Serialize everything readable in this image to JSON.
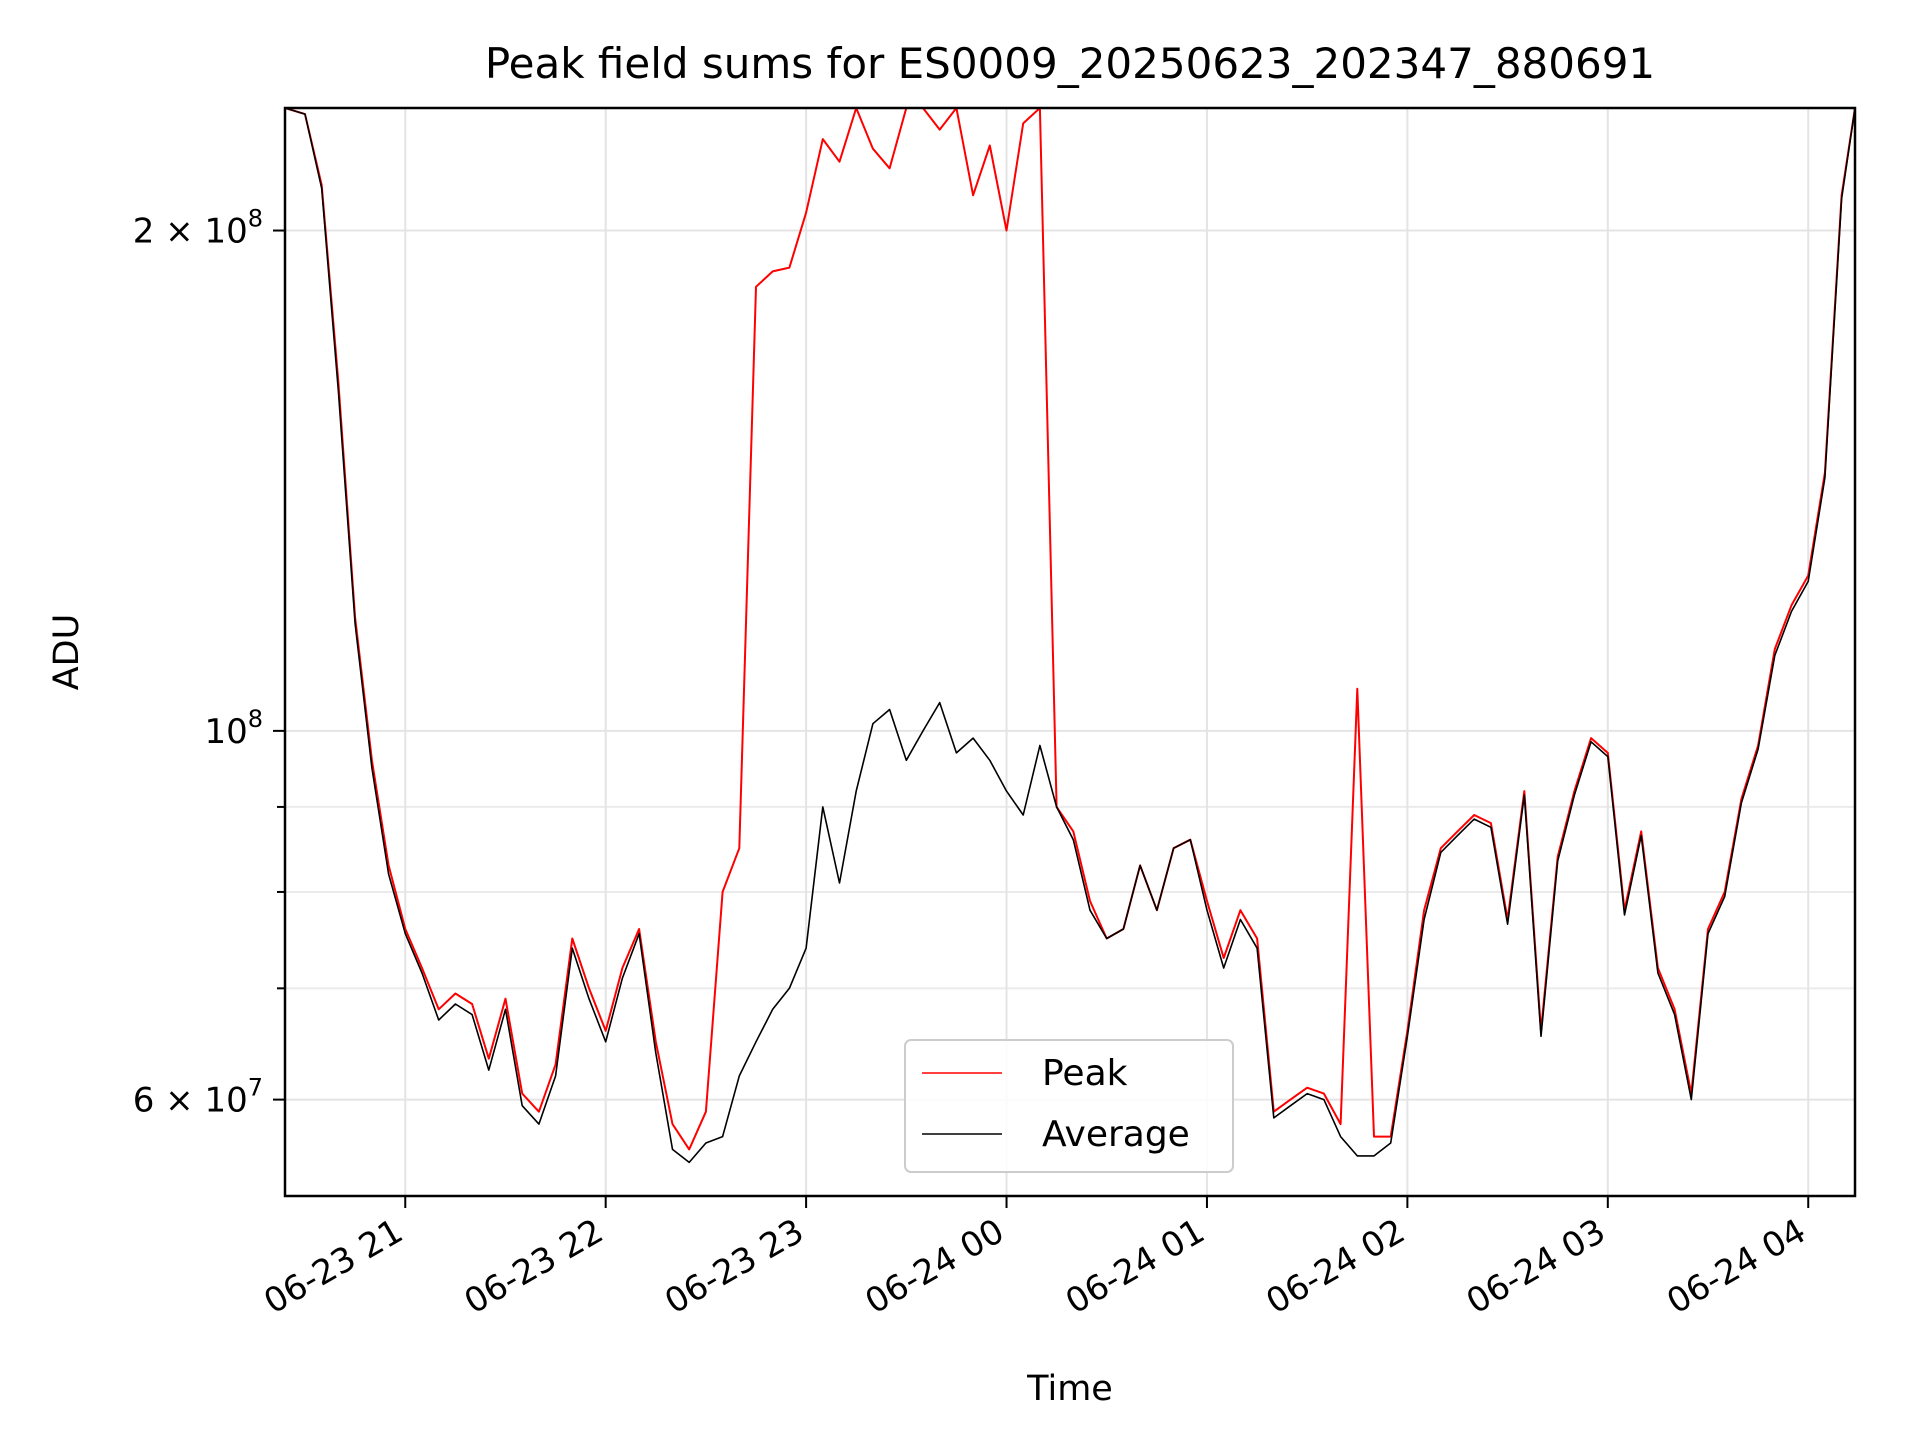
{
  "chart_data": {
    "type": "line",
    "title": "Peak field sums for ES0009_20250623_202347_880691",
    "xlabel": "Time",
    "ylabel": "ADU",
    "yscale": "log",
    "grid": true,
    "legend_position": "lower center",
    "ylim": [
      52500000,
      237000000
    ],
    "xlim": [
      "2025-06-23 20:24",
      "2025-06-24 04:14"
    ],
    "x_ticks": [
      "06-23 21",
      "06-23 22",
      "06-23 23",
      "06-24 00",
      "06-24 01",
      "06-24 02",
      "06-24 03",
      "06-24 04"
    ],
    "y_ticks": [
      {
        "value": 60000000,
        "mantissa": "6",
        "exponent": "7"
      },
      {
        "value": 100000000,
        "mantissa": "",
        "exponent": "8"
      },
      {
        "value": 200000000,
        "mantissa": "2",
        "exponent": "8"
      }
    ],
    "y_minor_ticks": [
      70000000,
      80000000,
      90000000
    ],
    "x": [
      "2025-06-23 20:24",
      "2025-06-23 20:30",
      "2025-06-23 20:35",
      "2025-06-23 20:40",
      "2025-06-23 20:45",
      "2025-06-23 20:50",
      "2025-06-23 20:55",
      "2025-06-23 21:00",
      "2025-06-23 21:05",
      "2025-06-23 21:10",
      "2025-06-23 21:15",
      "2025-06-23 21:20",
      "2025-06-23 21:25",
      "2025-06-23 21:30",
      "2025-06-23 21:35",
      "2025-06-23 21:40",
      "2025-06-23 21:45",
      "2025-06-23 21:50",
      "2025-06-23 21:55",
      "2025-06-23 22:00",
      "2025-06-23 22:05",
      "2025-06-23 22:10",
      "2025-06-23 22:15",
      "2025-06-23 22:20",
      "2025-06-23 22:25",
      "2025-06-23 22:30",
      "2025-06-23 22:35",
      "2025-06-23 22:40",
      "2025-06-23 22:45",
      "2025-06-23 22:50",
      "2025-06-23 22:55",
      "2025-06-23 23:00",
      "2025-06-23 23:05",
      "2025-06-23 23:10",
      "2025-06-23 23:15",
      "2025-06-23 23:20",
      "2025-06-23 23:25",
      "2025-06-23 23:30",
      "2025-06-23 23:35",
      "2025-06-23 23:40",
      "2025-06-23 23:45",
      "2025-06-23 23:50",
      "2025-06-23 23:55",
      "2025-06-24 00:00",
      "2025-06-24 00:05",
      "2025-06-24 00:10",
      "2025-06-24 00:15",
      "2025-06-24 00:20",
      "2025-06-24 00:25",
      "2025-06-24 00:30",
      "2025-06-24 00:35",
      "2025-06-24 00:40",
      "2025-06-24 00:45",
      "2025-06-24 00:50",
      "2025-06-24 00:55",
      "2025-06-24 01:00",
      "2025-06-24 01:05",
      "2025-06-24 01:10",
      "2025-06-24 01:15",
      "2025-06-24 01:20",
      "2025-06-24 01:25",
      "2025-06-24 01:30",
      "2025-06-24 01:35",
      "2025-06-24 01:40",
      "2025-06-24 01:45",
      "2025-06-24 01:50",
      "2025-06-24 01:55",
      "2025-06-24 02:00",
      "2025-06-24 02:05",
      "2025-06-24 02:10",
      "2025-06-24 02:15",
      "2025-06-24 02:20",
      "2025-06-24 02:25",
      "2025-06-24 02:30",
      "2025-06-24 02:35",
      "2025-06-24 02:40",
      "2025-06-24 02:45",
      "2025-06-24 02:50",
      "2025-06-24 02:55",
      "2025-06-24 03:00",
      "2025-06-24 03:05",
      "2025-06-24 03:10",
      "2025-06-24 03:15",
      "2025-06-24 03:20",
      "2025-06-24 03:25",
      "2025-06-24 03:30",
      "2025-06-24 03:35",
      "2025-06-24 03:40",
      "2025-06-24 03:45",
      "2025-06-24 03:50",
      "2025-06-24 03:55",
      "2025-06-24 04:00",
      "2025-06-24 04:05",
      "2025-06-24 04:10",
      "2025-06-24 04:14"
    ],
    "series": [
      {
        "name": "Peak",
        "color": "#ff0000",
        "values": [
          237000000,
          235000000,
          213000000,
          162000000,
          117000000,
          96000000,
          83000000,
          76000000,
          72000000,
          68000000,
          69500000,
          68500000,
          63500000,
          69000000,
          60500000,
          59000000,
          63000000,
          75000000,
          70000000,
          66000000,
          72000000,
          76000000,
          65000000,
          58000000,
          56000000,
          59000000,
          80000000,
          85000000,
          185000000,
          189000000,
          190000000,
          205000000,
          227000000,
          220000000,
          237000000,
          224000000,
          218000000,
          237000000,
          237000000,
          230000000,
          237000000,
          210000000,
          225000000,
          200000000,
          232000000,
          237000000,
          90000000,
          87000000,
          79000000,
          75000000,
          76000000,
          83000000,
          78000000,
          85000000,
          86000000,
          79000000,
          73000000,
          78000000,
          75000000,
          59000000,
          60000000,
          61000000,
          60500000,
          58000000,
          106000000,
          57000000,
          57000000,
          66000000,
          78000000,
          85000000,
          87000000,
          89000000,
          88000000,
          77000000,
          92000000,
          66000000,
          84000000,
          92000000,
          99000000,
          97000000,
          78000000,
          87000000,
          72000000,
          68000000,
          60500000,
          76000000,
          80000000,
          91000000,
          98000000,
          112000000,
          119000000,
          124000000,
          143000000,
          210000000,
          237000000
        ]
      },
      {
        "name": "Average",
        "color": "#000000",
        "values": [
          237000000,
          235000000,
          212000000,
          160000000,
          116000000,
          95000000,
          82000000,
          75500000,
          71500000,
          67000000,
          68500000,
          67500000,
          62500000,
          68000000,
          59500000,
          58000000,
          62000000,
          74000000,
          69000000,
          65000000,
          71000000,
          75500000,
          64000000,
          56000000,
          55000000,
          56500000,
          57000000,
          62000000,
          65000000,
          68000000,
          70000000,
          74000000,
          90000000,
          81000000,
          92000000,
          101000000,
          103000000,
          96000000,
          100000000,
          104000000,
          97000000,
          99000000,
          96000000,
          92000000,
          89000000,
          98000000,
          90000000,
          86000000,
          78000000,
          75000000,
          76000000,
          83000000,
          78000000,
          85000000,
          86000000,
          78000000,
          72000000,
          77000000,
          74000000,
          58500000,
          59500000,
          60500000,
          60000000,
          57000000,
          55500000,
          55500000,
          56500000,
          65500000,
          77000000,
          84500000,
          86500000,
          88500000,
          87500000,
          76500000,
          91500000,
          65500000,
          83500000,
          91500000,
          98500000,
          96500000,
          77500000,
          86500000,
          71500000,
          67500000,
          60000000,
          75500000,
          79500000,
          90500000,
          97500000,
          111000000,
          118000000,
          123000000,
          142000000,
          209000000,
          237000000
        ]
      }
    ]
  }
}
